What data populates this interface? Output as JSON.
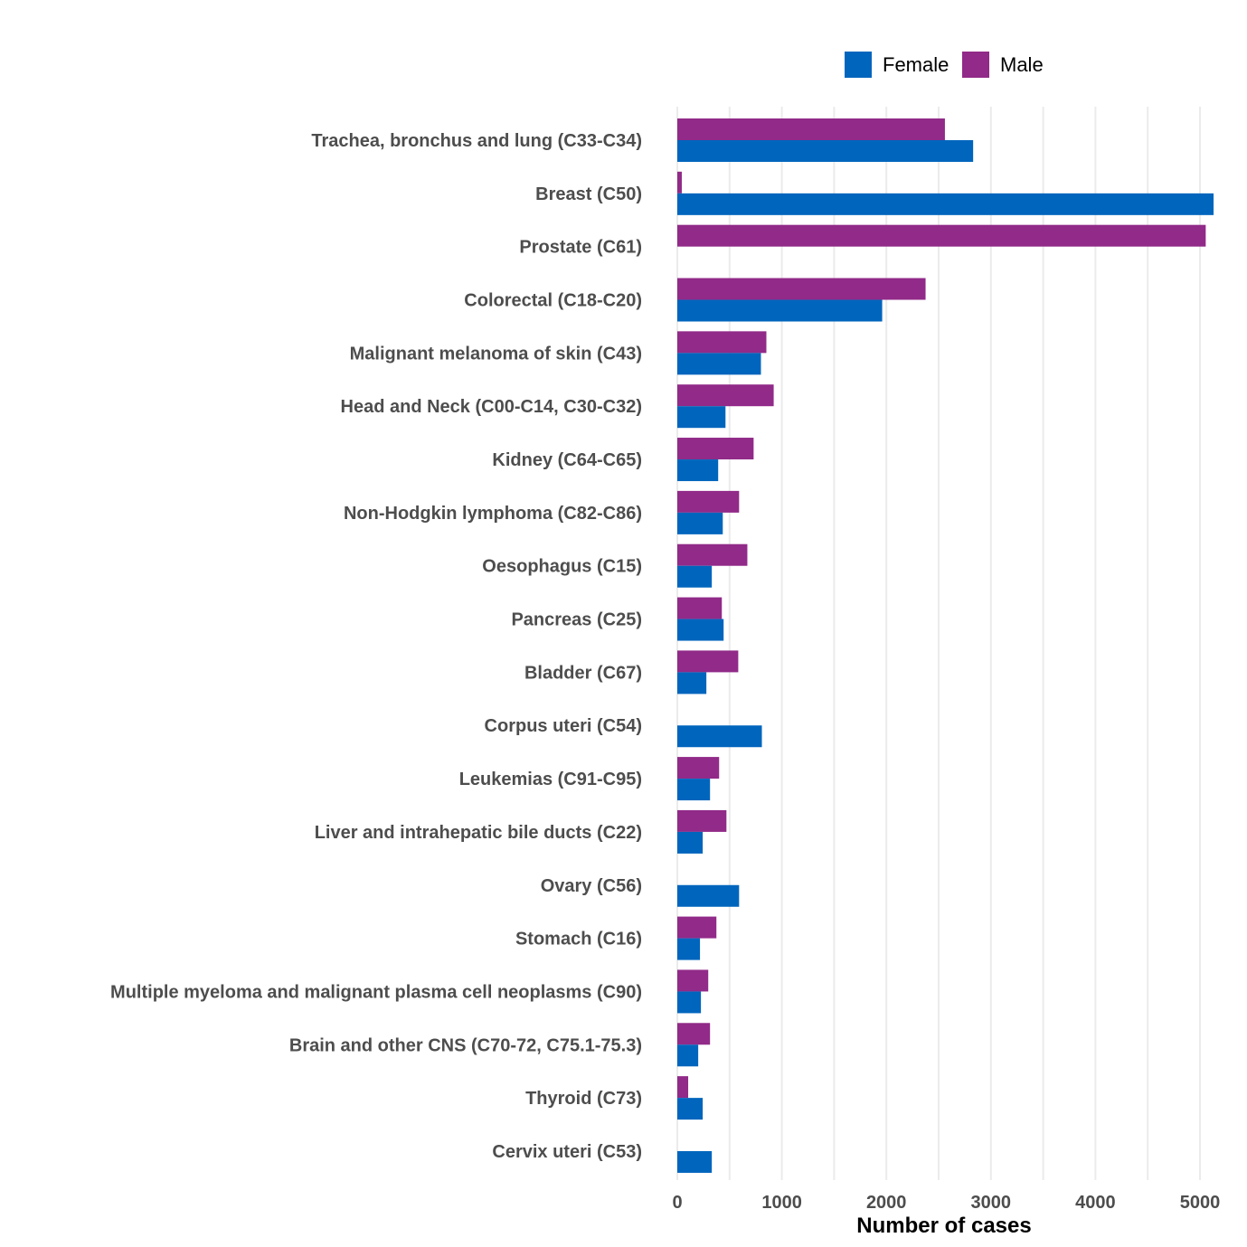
{
  "chart_data": {
    "type": "bar",
    "orientation": "horizontal",
    "title": "",
    "xlabel": "Number of cases",
    "ylabel": "",
    "xlim": [
      0,
      5150
    ],
    "xticks": [
      0,
      1000,
      2000,
      3000,
      4000,
      5000
    ],
    "grid": true,
    "legend_position": "top-right",
    "categories": [
      "Trachea, bronchus and lung (C33-C34)",
      "Breast (C50)",
      "Prostate (C61)",
      "Colorectal (C18-C20)",
      "Malignant melanoma of skin (C43)",
      "Head and Neck (C00-C14, C30-C32)",
      "Kidney (C64-C65)",
      "Non-Hodgkin lymphoma (C82-C86)",
      "Oesophagus (C15)",
      "Pancreas (C25)",
      "Bladder (C67)",
      "Corpus uteri (C54)",
      "Leukemias (C91-C95)",
      "Liver and intrahepatic bile ducts (C22)",
      "Ovary (C56)",
      "Stomach (C16)",
      "Multiple myeloma and malignant plasma cell neoplasms (C90)",
      "Brain and other CNS (C70-72, C75.1-75.3)",
      "Thyroid (C73)",
      "Cervix uteri (C53)"
    ],
    "series": [
      {
        "name": "Female",
        "color": "#0065bd",
        "values": [
          2830,
          5130,
          0,
          1960,
          800,
          461,
          391,
          435,
          330,
          443,
          278,
          809,
          313,
          243,
          591,
          217,
          226,
          200,
          243,
          330
        ]
      },
      {
        "name": "Male",
        "color": "#912a88",
        "values": [
          2560,
          43,
          5055,
          2375,
          852,
          922,
          730,
          591,
          670,
          426,
          583,
          0,
          400,
          470,
          0,
          374,
          296,
          313,
          104,
          0
        ]
      }
    ]
  }
}
